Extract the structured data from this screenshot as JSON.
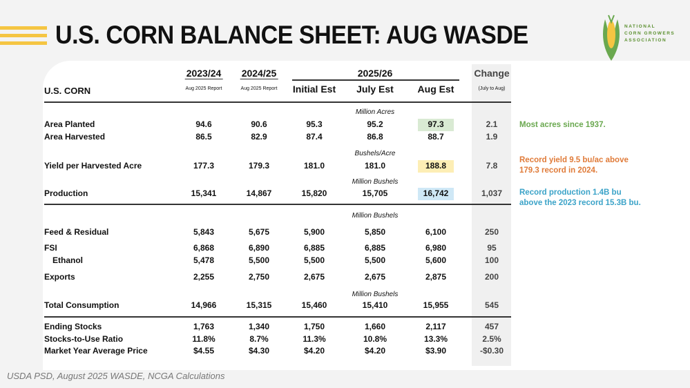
{
  "title": "U.S. CORN BALANCE SHEET: AUG WASDE",
  "logo_text": [
    "NATIONAL",
    "CORN GROWERS",
    "ASSOCIATION"
  ],
  "header": {
    "label": "U.S. CORN",
    "y1": "2023/24",
    "y2": "2024/25",
    "y3": "2025/26",
    "y1_sub": "Aug 2025 Report",
    "y2_sub": "Aug 2025 Report",
    "initial": "Initial Est",
    "july": "July Est",
    "aug": "Aug Est",
    "change": "Change",
    "change_sub": "(July to Aug)"
  },
  "units": {
    "acres": "Million Acres",
    "bushels_acre": "Bushels/Acre",
    "mil_bu": "Million Bushels"
  },
  "rows": [
    {
      "label": "Area Planted",
      "v": [
        "94.6",
        "90.6",
        "95.3",
        "95.2",
        "97.3",
        "2.1"
      ]
    },
    {
      "label": "Area Harvested",
      "v": [
        "86.5",
        "82.9",
        "87.4",
        "86.8",
        "88.7",
        "1.9"
      ]
    },
    {
      "label": "Yield per Harvested Acre",
      "v": [
        "177.3",
        "179.3",
        "181.0",
        "181.0",
        "188.8",
        "7.8"
      ]
    },
    {
      "label": "Production",
      "v": [
        "15,341",
        "14,867",
        "15,820",
        "15,705",
        "16,742",
        "1,037"
      ]
    },
    {
      "label": "Feed & Residual",
      "v": [
        "5,843",
        "5,675",
        "5,900",
        "5,850",
        "6,100",
        "250"
      ]
    },
    {
      "label": "FSI",
      "v": [
        "6,868",
        "6,890",
        "6,885",
        "6,885",
        "6,980",
        "95"
      ]
    },
    {
      "label": "Ethanol",
      "v": [
        "5,478",
        "5,500",
        "5,500",
        "5,500",
        "5,600",
        "100"
      ]
    },
    {
      "label": "Exports",
      "v": [
        "2,255",
        "2,750",
        "2,675",
        "2,675",
        "2,875",
        "200"
      ]
    },
    {
      "label": "Total Consumption",
      "v": [
        "14,966",
        "15,315",
        "15,460",
        "15,410",
        "15,955",
        "545"
      ]
    },
    {
      "label": "Ending Stocks",
      "v": [
        "1,763",
        "1,340",
        "1,750",
        "1,660",
        "2,117",
        "457"
      ]
    },
    {
      "label": "Stocks-to-Use Ratio",
      "v": [
        "11.8%",
        "8.7%",
        "11.3%",
        "10.8%",
        "13.3%",
        "2.5%"
      ]
    },
    {
      "label": "Market Year Average Price",
      "v": [
        "$4.55",
        "$4.30",
        "$4.20",
        "$4.20",
        "$3.90",
        "-$0.30"
      ]
    }
  ],
  "notes": {
    "acres": "Most acres since 1937.",
    "yield_1": "Record yield 9.5 bu/ac above",
    "yield_2": "179.3 record in 2024.",
    "prod_1": "Record production 1.4B bu",
    "prod_2": "above the 2023 record 15.3B bu."
  },
  "colors": {
    "acres": "#6aa84f",
    "yield": "#e07b39",
    "production": "#3ba3c8",
    "accent": "#f5c542"
  },
  "source": "USDA PSD, August 2025 WASDE, NCGA Calculations"
}
